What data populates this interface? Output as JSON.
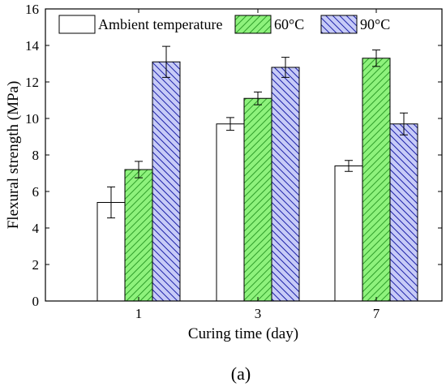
{
  "chart_data": {
    "type": "bar",
    "categories": [
      "1",
      "3",
      "7"
    ],
    "series": [
      {
        "name": "Ambient temperature",
        "values": [
          5.4,
          9.7,
          7.4
        ],
        "errors": [
          0.85,
          0.35,
          0.3
        ],
        "fill": "#ffffff",
        "hatch": "none"
      },
      {
        "name": "60°C",
        "values": [
          7.2,
          11.1,
          13.3
        ],
        "errors": [
          0.45,
          0.35,
          0.45
        ],
        "fill": "#8ef27c",
        "hatch": "#2f9e2a"
      },
      {
        "name": "90°C",
        "values": [
          13.1,
          12.8,
          9.7
        ],
        "errors": [
          0.85,
          0.55,
          0.6
        ],
        "fill": "#c7cbf7",
        "hatch": "#1b1fa8"
      }
    ],
    "xlabel": "Curing time (day)",
    "ylabel": "Flexural strength (MPa)",
    "ylim": [
      0,
      16
    ],
    "yticks": [
      0,
      2,
      4,
      6,
      8,
      10,
      12,
      14,
      16
    ],
    "grid": false,
    "legend_position": "top"
  },
  "caption": "(a)"
}
